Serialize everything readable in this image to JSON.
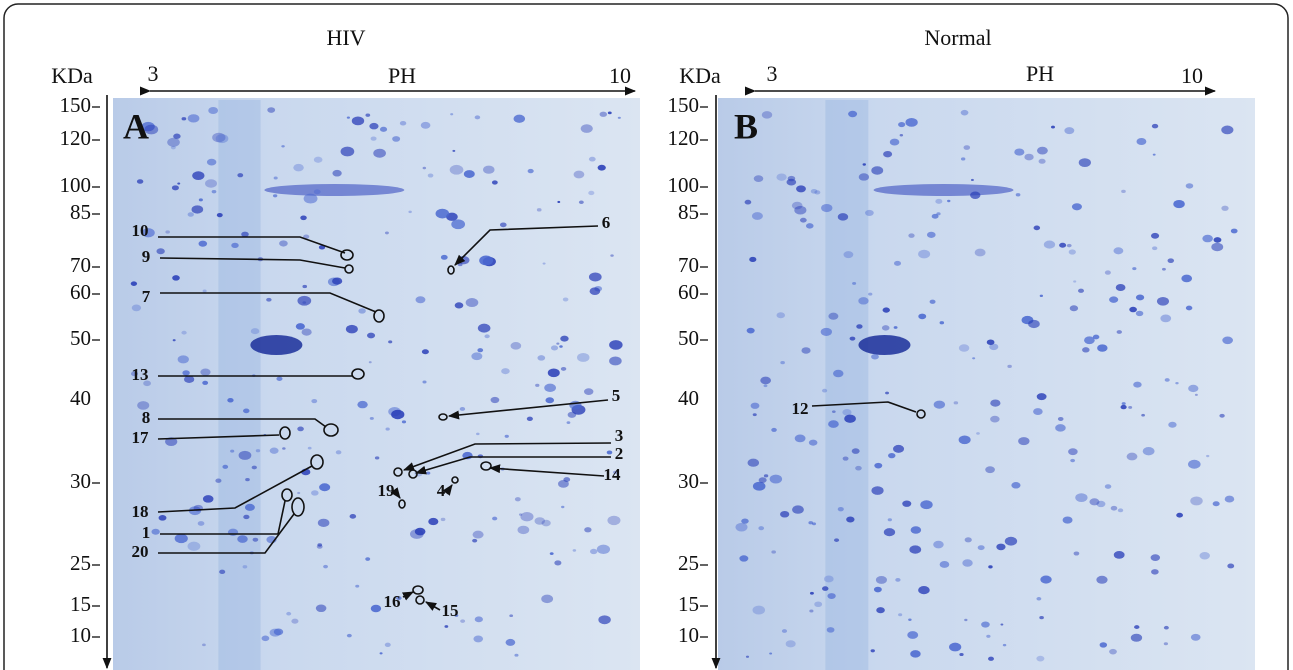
{
  "panels": [
    {
      "title": "HIV",
      "letter": "A",
      "y_unit": "KDa",
      "ph_label": "PH",
      "ph_min": "3",
      "ph_max": "10",
      "mw_labels": [
        "150",
        "120",
        "100",
        "85",
        "70",
        "60",
        "50",
        "40",
        "30",
        "25",
        "15",
        "10"
      ],
      "spots": [
        "10",
        "9",
        "7",
        "13",
        "8",
        "17",
        "18",
        "1",
        "20",
        "6",
        "5",
        "3",
        "2",
        "14",
        "19",
        "4",
        "16",
        "15"
      ]
    },
    {
      "title": "Normal",
      "letter": "B",
      "y_unit": "KDa",
      "ph_label": "PH",
      "ph_min": "3",
      "ph_max": "10",
      "mw_labels": [
        "150",
        "120",
        "100",
        "85",
        "70",
        "60",
        "50",
        "40",
        "30",
        "25",
        "15",
        "10"
      ],
      "spots": [
        "12"
      ]
    }
  ]
}
